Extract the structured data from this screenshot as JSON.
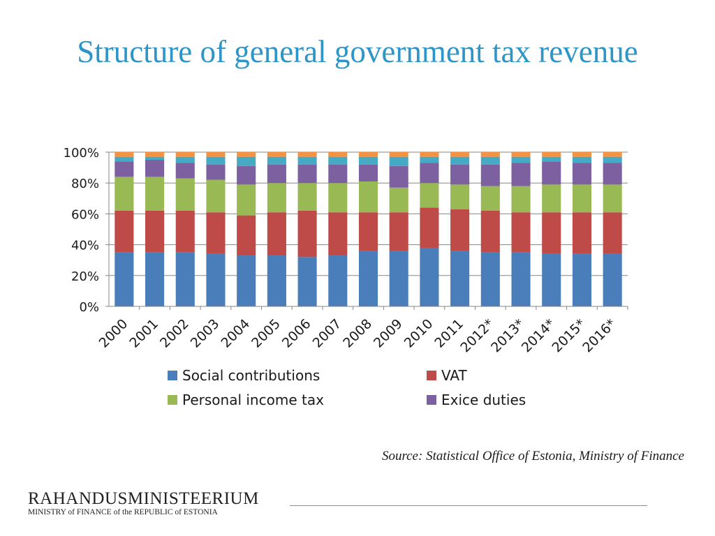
{
  "slide": {
    "title": "Structure of general government tax revenue",
    "source": "Source: Statistical Office of Estonia, Ministry of Finance",
    "ministry_name": "RAHANDUSMINISTEERIUM",
    "ministry_subtitle": "MINISTRY of FINANCE of the REPUBLIC of ESTONIA"
  },
  "chart_data": {
    "type": "bar",
    "stacked": true,
    "percent_axis": true,
    "title": "",
    "xlabel": "",
    "ylabel": "",
    "ylim": [
      0,
      100
    ],
    "y_ticks": [
      "0%",
      "20%",
      "40%",
      "60%",
      "80%",
      "100%"
    ],
    "grid": "horizontal",
    "legend_position": "bottom",
    "categories": [
      "2000",
      "2001",
      "2002",
      "2003",
      "2004",
      "2005",
      "2006",
      "2007",
      "2008",
      "2009",
      "2010",
      "2011",
      "2012*",
      "2013*",
      "2014*",
      "2015*",
      "2016*"
    ],
    "series": [
      {
        "name": "Social contributions",
        "color": "#4a7ebb",
        "legend": true,
        "values": [
          35,
          35,
          35,
          34,
          33,
          33,
          32,
          33,
          36,
          36,
          38,
          36,
          35,
          35,
          34,
          34,
          34
        ]
      },
      {
        "name": "VAT",
        "color": "#be4b48",
        "legend": true,
        "values": [
          27,
          27,
          27,
          27,
          26,
          28,
          30,
          28,
          25,
          25,
          26,
          27,
          27,
          26,
          27,
          27,
          27
        ]
      },
      {
        "name": "Personal income tax",
        "color": "#98b954",
        "legend": true,
        "values": [
          22,
          22,
          21,
          21,
          20,
          19,
          18,
          19,
          20,
          16,
          16,
          16,
          16,
          17,
          18,
          18,
          18
        ]
      },
      {
        "name": "Exice duties",
        "color": "#7d60a0",
        "legend": true,
        "values": [
          10,
          11,
          10,
          10,
          12,
          12,
          12,
          12,
          11,
          14,
          13,
          13,
          14,
          15,
          15,
          14,
          14
        ]
      },
      {
        "name": "",
        "color": "#46aac5",
        "legend": false,
        "values": [
          3,
          2,
          4,
          5,
          6,
          5,
          5,
          5,
          5,
          6,
          4,
          5,
          5,
          4,
          3,
          4,
          4
        ]
      },
      {
        "name": "",
        "color": "#f69240",
        "legend": false,
        "values": [
          3,
          3,
          3,
          3,
          3,
          3,
          3,
          3,
          3,
          3,
          3,
          3,
          3,
          3,
          3,
          3,
          3
        ]
      }
    ]
  }
}
